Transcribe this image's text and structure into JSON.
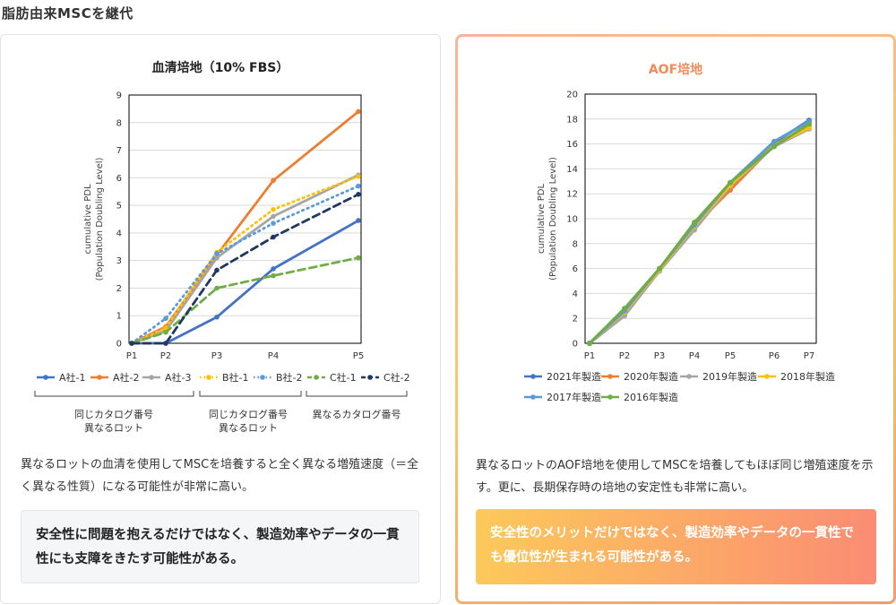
{
  "page": {
    "title": "脂肪由来MSCを継代"
  },
  "left": {
    "description": "異なるロットの血清を使用してMSCを培養すると全く異なる増殖速度（＝全く異なる性質）になる可能性が非常に高い。",
    "note": "安全性に問題を抱えるだけではなく、製造効率やデータの一貫性にも支障をきたす可能性がある。",
    "groups": [
      {
        "label1": "同じカタログ番号",
        "label2": "異なるロット"
      },
      {
        "label1": "同じカタログ番号",
        "label2": "異なるロット"
      },
      {
        "label1": "異なるカタログ番号",
        "label2": ""
      }
    ]
  },
  "right": {
    "description": "異なるロットのAOF培地を使用してMSCを培養してもほぼ同じ増殖速度を示す。更に、長期保存時の培地の安定性も非常に高い。",
    "note": "安全性のメリットだけではなく、製造効率やデータの一貫性でも優位性が生まれる可能性がある。"
  },
  "chart_data": [
    {
      "type": "line",
      "title": "血清培地（10% FBS）",
      "ylabel": "cumulative PDL\n(Population Doubling Level)",
      "xlabel": "",
      "x": [
        "P1",
        "P2",
        "P3",
        "P4",
        "P5"
      ],
      "ylim": [
        0,
        9
      ],
      "yticks": [
        0,
        1,
        2,
        3,
        4,
        5,
        6,
        7,
        8,
        9
      ],
      "legend": "bottom",
      "series": [
        {
          "name": "A社-1",
          "color": "#4472c4",
          "dash": "solid",
          "values": [
            0,
            0,
            0.95,
            2.7,
            4.45
          ]
        },
        {
          "name": "A社-2",
          "color": "#ed7d31",
          "dash": "solid",
          "values": [
            0,
            0.6,
            3.2,
            5.9,
            8.4
          ]
        },
        {
          "name": "A社-3",
          "color": "#a5a5a5",
          "dash": "solid",
          "values": [
            0,
            0.45,
            3.1,
            4.6,
            6.1
          ]
        },
        {
          "name": "B社-1",
          "color": "#ffc000",
          "dash": "dot",
          "values": [
            0,
            0.55,
            3.3,
            4.85,
            6.05
          ]
        },
        {
          "name": "B社-2",
          "color": "#5b9bd5",
          "dash": "dot",
          "values": [
            0,
            0.9,
            3.25,
            4.35,
            5.7
          ]
        },
        {
          "name": "C社-1",
          "color": "#70ad47",
          "dash": "dash",
          "values": [
            0,
            0.4,
            2.0,
            2.45,
            3.1
          ]
        },
        {
          "name": "C社-2",
          "color": "#203864",
          "dash": "dash",
          "values": [
            0,
            0,
            2.65,
            3.85,
            5.4
          ]
        }
      ]
    },
    {
      "type": "line",
      "title": "AOF培地",
      "ylabel": "cumulative PDL\n(Population Doubling Level)",
      "xlabel": "",
      "x": [
        "P1",
        "P2",
        "P3",
        "P4",
        "P5",
        "P6",
        "P7"
      ],
      "ylim": [
        0,
        20
      ],
      "yticks": [
        0,
        2,
        4,
        6,
        8,
        10,
        12,
        14,
        16,
        18,
        20
      ],
      "legend": "bottom",
      "series": [
        {
          "name": "2021年製造",
          "color": "#4472c4",
          "values": [
            0,
            2.7,
            5.9,
            9.6,
            12.8,
            16.1,
            17.9
          ]
        },
        {
          "name": "2020年製造",
          "color": "#ed7d31",
          "values": [
            0,
            2.6,
            5.8,
            9.4,
            12.3,
            15.9,
            17.5
          ]
        },
        {
          "name": "2019年製造",
          "color": "#a5a5a5",
          "values": [
            0,
            2.2,
            5.8,
            9.1,
            12.6,
            15.8,
            17.2
          ]
        },
        {
          "name": "2018年製造",
          "color": "#ffc000",
          "values": [
            0,
            2.5,
            5.9,
            9.4,
            12.7,
            15.9,
            17.3
          ]
        },
        {
          "name": "2017年製造",
          "color": "#5b9bd5",
          "values": [
            0,
            2.6,
            6.0,
            9.5,
            12.9,
            16.2,
            17.8
          ]
        },
        {
          "name": "2016年製造",
          "color": "#70ad47",
          "values": [
            0,
            2.8,
            6.0,
            9.7,
            12.9,
            15.8,
            17.6
          ]
        }
      ]
    }
  ]
}
